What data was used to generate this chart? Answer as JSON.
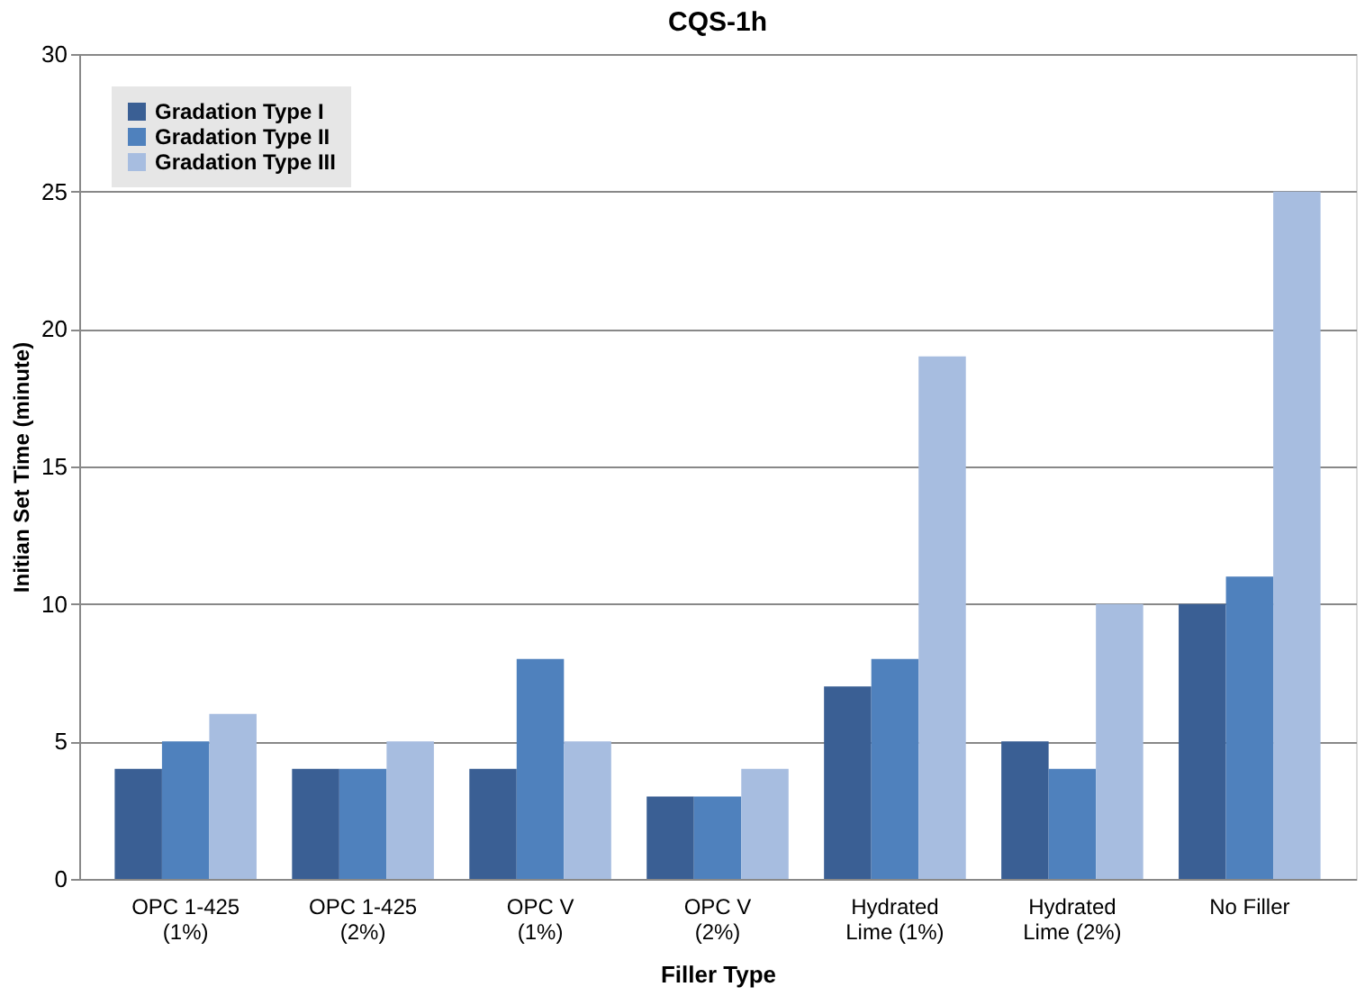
{
  "chart_data": {
    "type": "bar",
    "title": "CQS-1h",
    "xlabel": "Filler Type",
    "ylabel": "Initian Set Time (minute)",
    "categories": [
      "OPC 1-425\n(1%)",
      "OPC 1-425\n(2%)",
      "OPC V\n(1%)",
      "OPC V\n(2%)",
      "Hydrated\nLime (1%)",
      "Hydrated\nLime (2%)",
      "No Filler"
    ],
    "series": [
      {
        "name": "Gradation Type I",
        "color": "#3a5f94",
        "values": [
          4,
          4,
          4,
          3,
          7,
          5,
          10
        ]
      },
      {
        "name": "Gradation Type II",
        "color": "#4f81bd",
        "values": [
          5,
          4,
          8,
          3,
          8,
          4,
          11
        ]
      },
      {
        "name": "Gradation Type III",
        "color": "#a7bde0",
        "values": [
          6,
          5,
          5,
          4,
          19,
          10,
          25
        ]
      }
    ],
    "ylim": [
      0,
      30
    ],
    "yticks": [
      0,
      5,
      10,
      15,
      20,
      25,
      30
    ],
    "grid": "y",
    "legend": "top left"
  }
}
